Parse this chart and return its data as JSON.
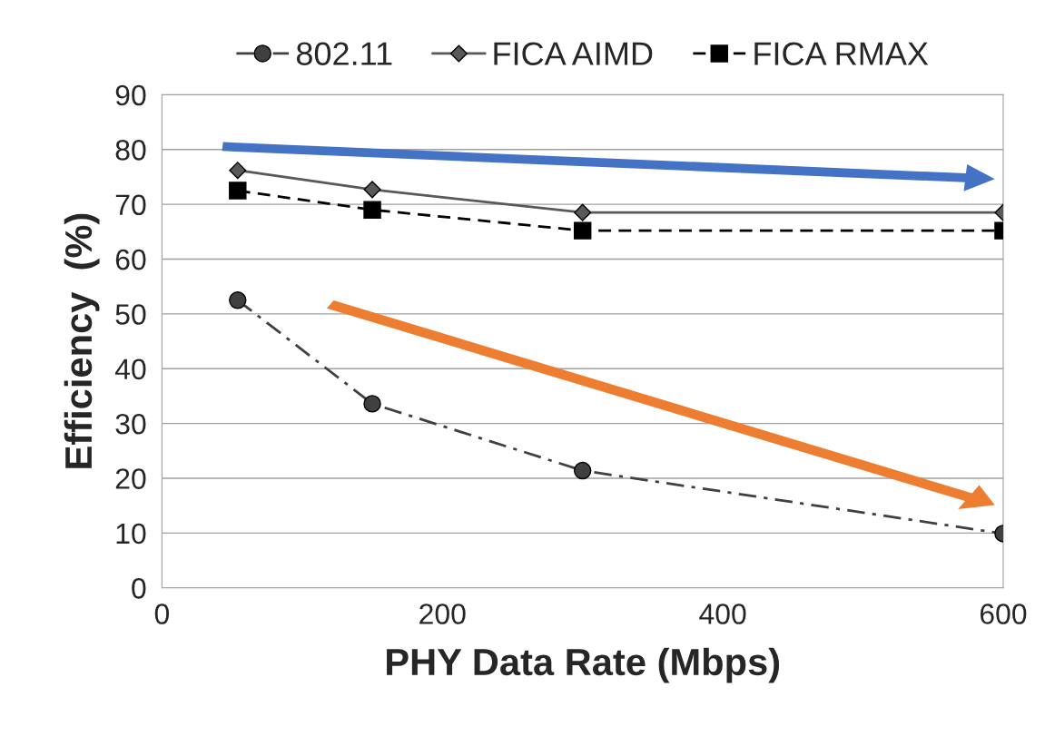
{
  "chart_data": {
    "type": "line",
    "xlabel": "PHY Data Rate (Mbps)",
    "ylabel": "Efficiency  (%)",
    "x": [
      54,
      150,
      300,
      600
    ],
    "series": [
      {
        "name": "802.11",
        "color": "#404040",
        "values": [
          52.5,
          33.6,
          21.4,
          9.9
        ],
        "marker": "circle",
        "line_style": "dashdot"
      },
      {
        "name": "FICA AIMD",
        "color": "#595959",
        "values": [
          76.2,
          72.7,
          68.5,
          68.5
        ],
        "marker": "diamond",
        "line_style": "solid"
      },
      {
        "name": "FICA RMAX",
        "color": "#000000",
        "values": [
          72.5,
          69.0,
          65.2,
          65.2
        ],
        "marker": "square",
        "line_style": "dashed"
      }
    ],
    "xlim": [
      0,
      600
    ],
    "xticks": [
      0,
      200,
      400,
      600
    ],
    "ylim": [
      0,
      90
    ],
    "yticks": [
      0,
      10,
      20,
      30,
      40,
      50,
      60,
      70,
      80,
      90
    ],
    "grid": "y",
    "legend": "top"
  }
}
